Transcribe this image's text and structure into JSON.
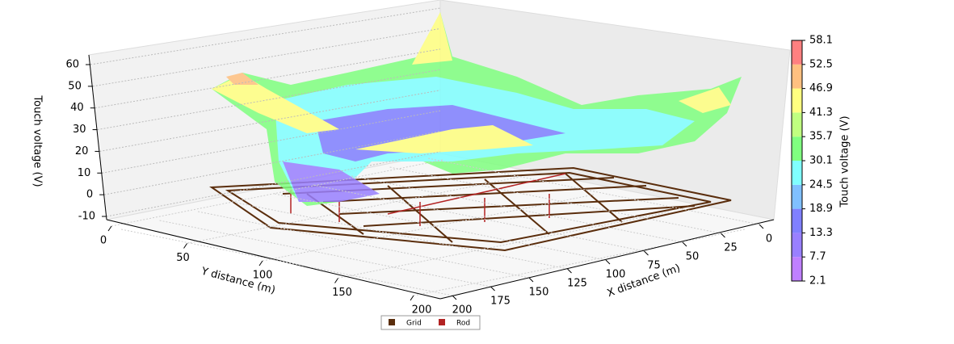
{
  "chart_data": {
    "type": "surface3d",
    "xlabel": "X distance (m)",
    "ylabel": "Y distance (m)",
    "zlabel": "Touch voltage (V)",
    "xlim": [
      0,
      200
    ],
    "xticks": [
      0,
      25,
      50,
      75,
      100,
      125,
      150,
      175,
      200
    ],
    "ylim": [
      0,
      200
    ],
    "yticks": [
      0,
      50,
      100,
      150,
      200
    ],
    "zlim": [
      -10,
      60
    ],
    "zticks": [
      -10,
      0,
      10,
      20,
      30,
      40,
      50,
      60
    ],
    "grid": true,
    "colorbar": {
      "label": "Touch voltage (V)",
      "ticks": [
        2.1,
        7.7,
        13.3,
        18.9,
        24.5,
        30.1,
        35.7,
        41.3,
        46.9,
        52.5,
        58.1
      ],
      "colors": [
        "#bf80ff",
        "#9980ff",
        "#8080ff",
        "#80c0ff",
        "#80ffff",
        "#80ff80",
        "#c0ff80",
        "#ffff80",
        "#ffc080",
        "#ff8080"
      ]
    },
    "legend": {
      "position": "lower center",
      "items": [
        {
          "name": "Grid",
          "color": "#5a2d0c"
        },
        {
          "name": "Rod",
          "color": "#b22222"
        }
      ]
    }
  }
}
